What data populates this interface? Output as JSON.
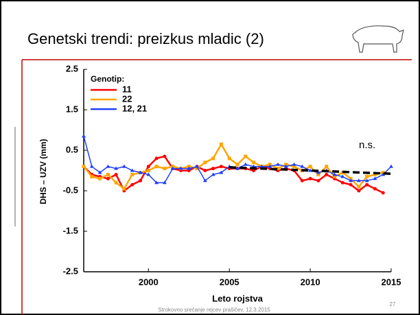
{
  "slide": {
    "title": "Genetski trendi: preizkus mladic (2)",
    "footer": "Strokovno srečanje rejcev prašičev, 12.3.2015",
    "page": "27"
  },
  "chart_data": {
    "type": "line",
    "x": [
      1996,
      1996.5,
      1997,
      1997.5,
      1998,
      1998.5,
      1999,
      1999.5,
      2000,
      2000.5,
      2001,
      2001.5,
      2002,
      2002.5,
      2003,
      2003.5,
      2004,
      2004.5,
      2005,
      2005.5,
      2006,
      2006.5,
      2007,
      2007.5,
      2008,
      2008.5,
      2009,
      2009.5,
      2010,
      2010.5,
      2011,
      2011.5,
      2012,
      2012.5,
      2013,
      2013.5,
      2014,
      2014.5,
      2015
    ],
    "series": [
      {
        "name": "11",
        "color": "#ff0000",
        "values": [
          0.1,
          -0.1,
          -0.15,
          -0.2,
          -0.1,
          -0.5,
          -0.35,
          -0.25,
          0.1,
          0.3,
          0.35,
          0.05,
          0.0,
          0.0,
          0.1,
          0.0,
          0.05,
          0.1,
          0.05,
          0.05,
          0.05,
          0.0,
          0.1,
          0.05,
          0.0,
          0.05,
          0.0,
          -0.25,
          -0.2,
          -0.25,
          -0.1,
          -0.2,
          -0.3,
          -0.35,
          -0.5,
          -0.35,
          -0.45,
          -0.55,
          null
        ]
      },
      {
        "name": "22",
        "color": "#ffa500",
        "values": [
          0.1,
          -0.15,
          -0.2,
          -0.1,
          -0.3,
          -0.45,
          -0.1,
          -0.05,
          0.0,
          0.1,
          0.05,
          0.1,
          0.05,
          0.1,
          0.05,
          0.2,
          0.3,
          0.65,
          0.3,
          0.15,
          0.35,
          0.2,
          0.1,
          0.15,
          0.05,
          0.15,
          0.1,
          0.0,
          0.1,
          -0.1,
          0.1,
          -0.15,
          -0.05,
          -0.2,
          -0.4,
          -0.15,
          -0.1,
          -0.05,
          null
        ]
      },
      {
        "name": "12, 21",
        "color": "#1f3fff",
        "values": [
          0.85,
          0.1,
          -0.05,
          0.1,
          0.05,
          0.1,
          0.0,
          -0.05,
          -0.1,
          -0.3,
          -0.3,
          0.05,
          0.05,
          0.05,
          0.1,
          -0.25,
          -0.1,
          -0.05,
          0.1,
          0.05,
          0.15,
          0.1,
          0.1,
          0.1,
          0.15,
          0.1,
          0.15,
          0.1,
          0.0,
          -0.05,
          0.0,
          -0.1,
          -0.15,
          -0.25,
          -0.25,
          -0.25,
          -0.2,
          -0.1,
          0.1
        ]
      }
    ],
    "trend": {
      "x": [
        2005,
        2015
      ],
      "values": [
        0.08,
        -0.08
      ],
      "color": "#000000"
    },
    "legend_title": "Genotip:",
    "annotation": "n.s.",
    "xlabel": "Leto rojstva",
    "ylabel": "DHS – UZV (mm)",
    "xlim": [
      1996,
      2015
    ],
    "xticks": [
      2000,
      2005,
      2010,
      2015
    ],
    "ylim": [
      -2.5,
      2.5
    ],
    "yticks": [
      2.5,
      1.5,
      0.5,
      -0.5,
      -1.5,
      -2.5
    ]
  }
}
